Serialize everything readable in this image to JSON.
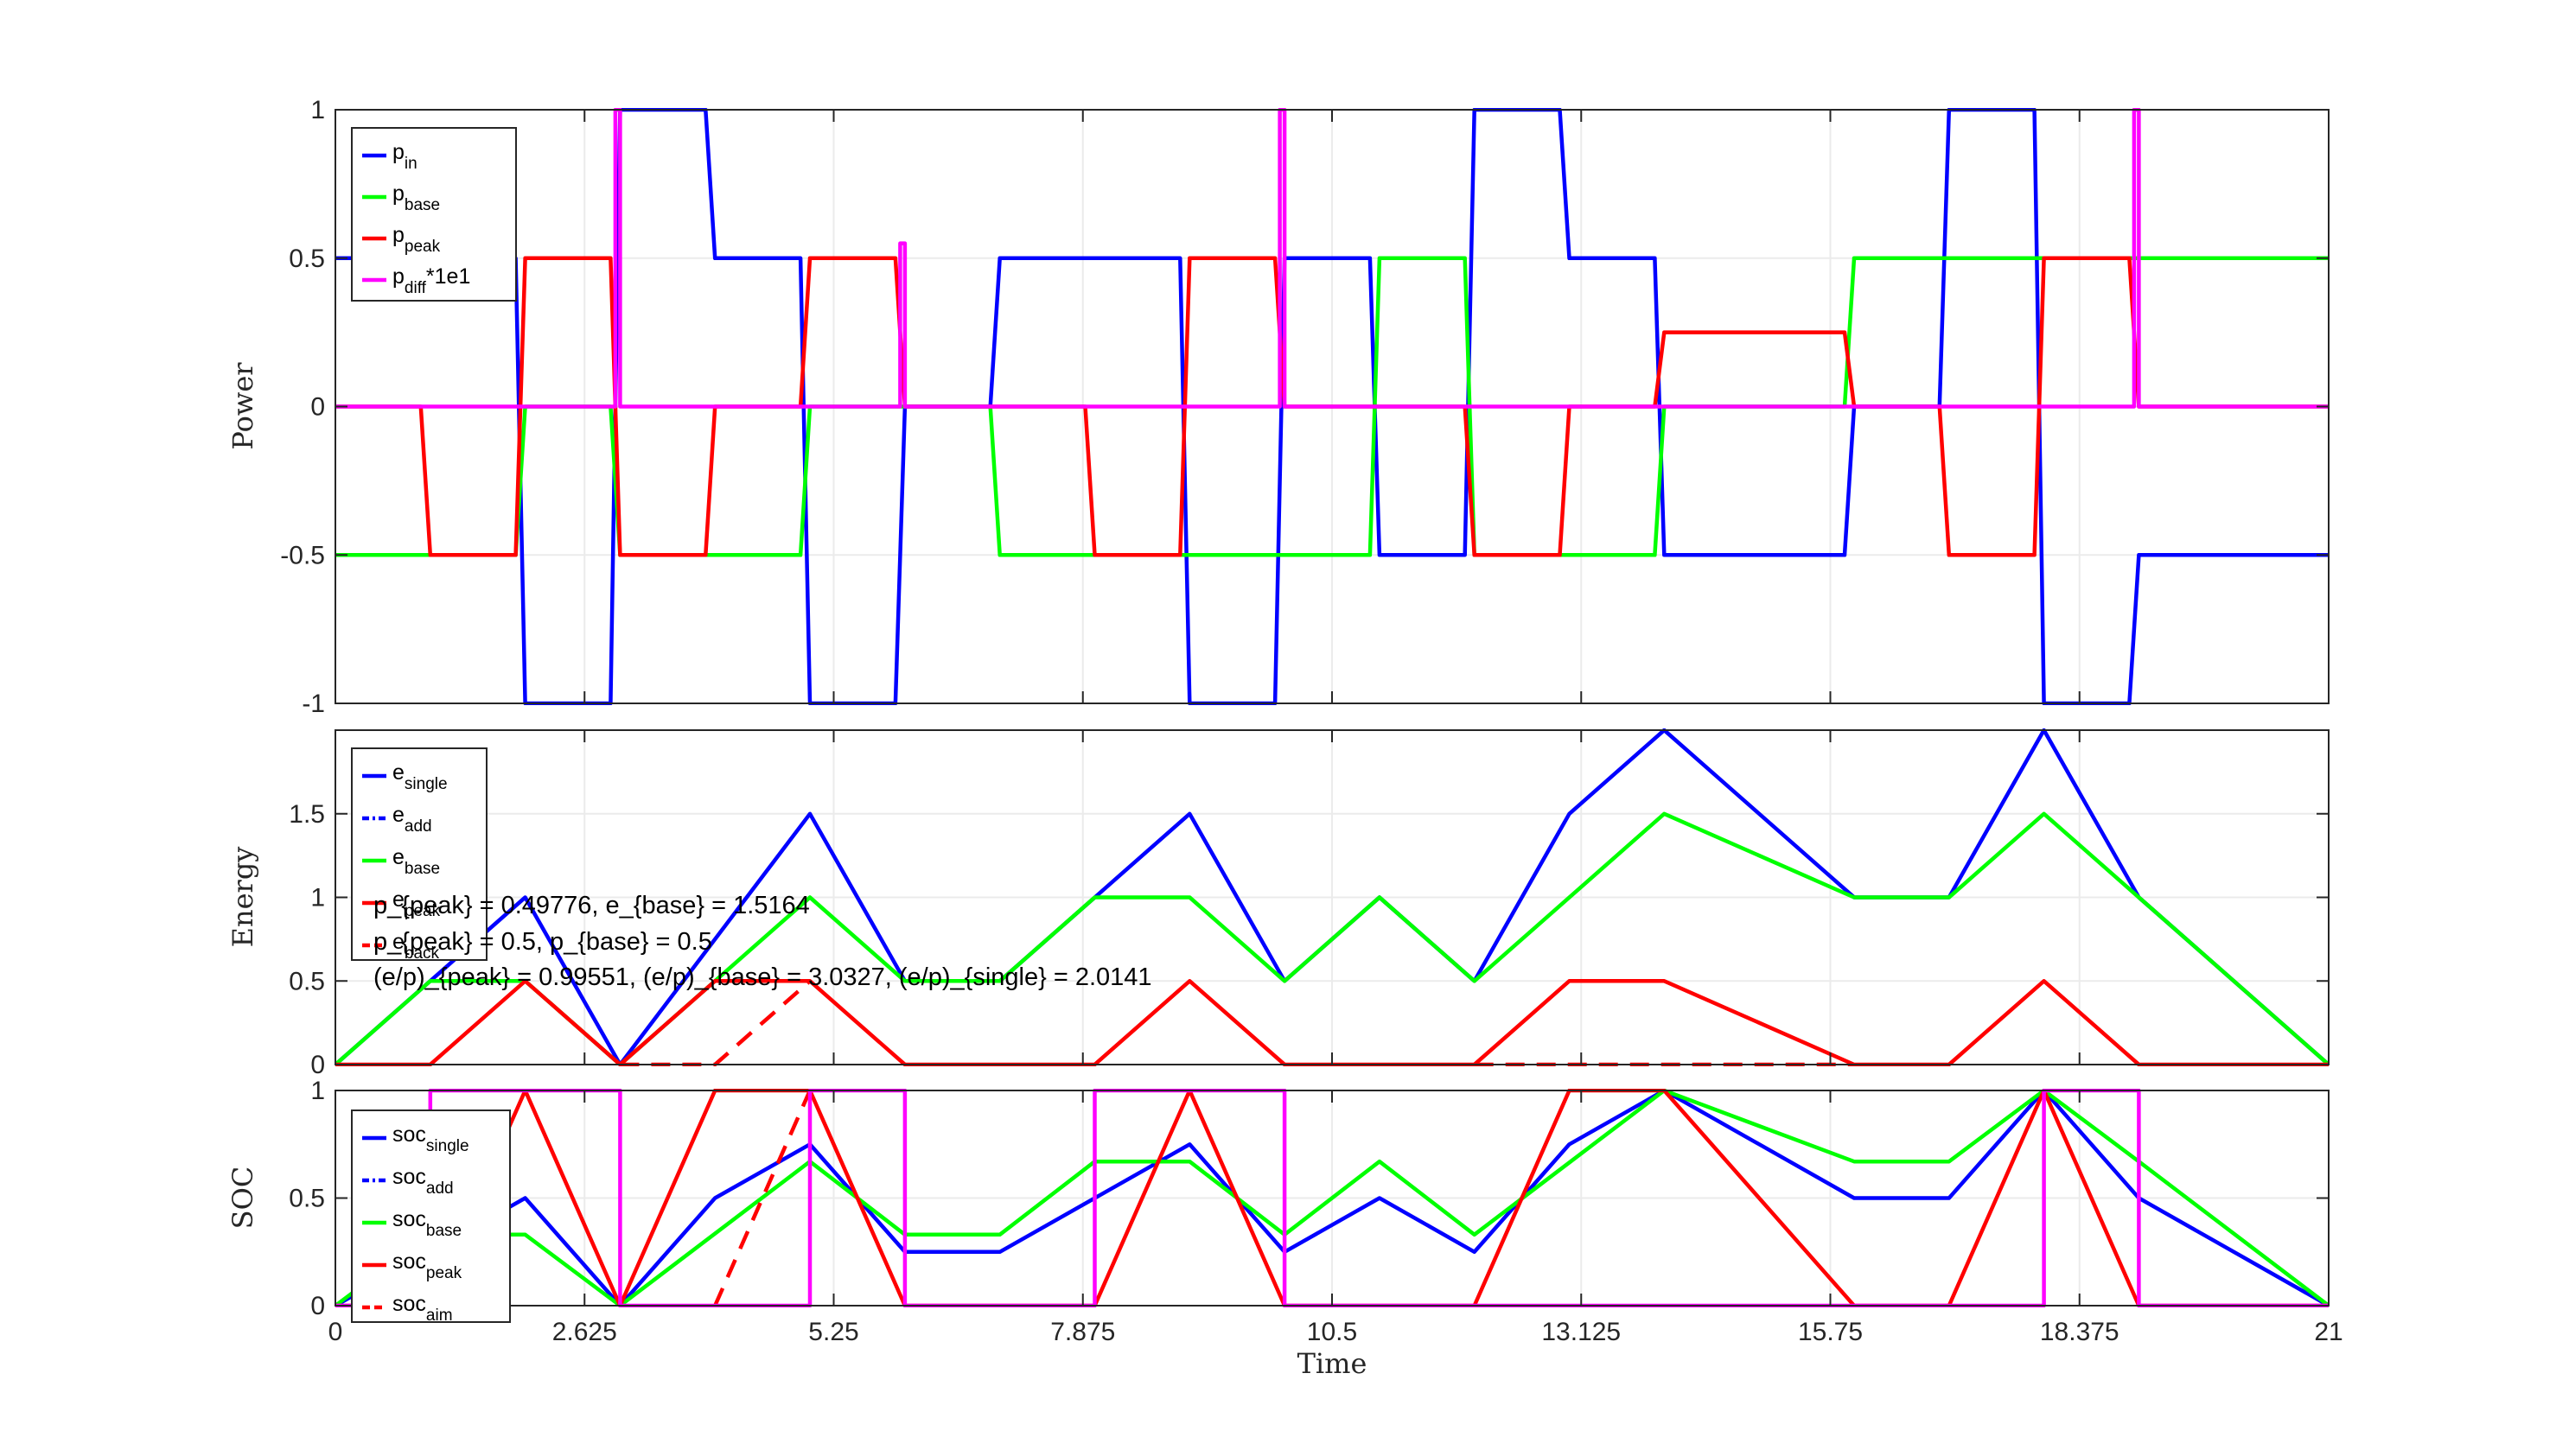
{
  "chart_data": [
    {
      "type": "line",
      "ylabel": "Power",
      "xlim": [
        0,
        21
      ],
      "ylim": [
        -1,
        1
      ],
      "yticks": [
        "-1",
        "-0.5",
        "0",
        "0.5",
        "1"
      ],
      "grid": true,
      "legend_position": "top-left",
      "series": [
        {
          "name": "p_in",
          "legend": {
            "main": "p",
            "sub": "in",
            "tail": ""
          },
          "color": "#0000ff",
          "x": [
            0,
            1.9,
            2.0,
            2.9,
            3.0,
            3.9,
            4.0,
            4.9,
            5.0,
            5.9,
            6.0,
            6.9,
            7.0,
            8.9,
            9.0,
            9.9,
            10.0,
            10.9,
            11.0,
            11.9,
            12.0,
            12.9,
            13.0,
            13.9,
            14.0,
            15.9,
            16.0,
            16.9,
            17.0,
            17.9,
            18.0,
            18.9,
            19.0,
            21
          ],
          "y": [
            0.5,
            0.5,
            -1,
            -1,
            1,
            1,
            0.5,
            0.5,
            -1,
            -1,
            0,
            0,
            0.5,
            0.5,
            -1,
            -1,
            0.5,
            0.5,
            -0.5,
            -0.5,
            1,
            1,
            0.5,
            0.5,
            -0.5,
            -0.5,
            0,
            0,
            1,
            1,
            -1,
            -1,
            -0.5,
            -0.5
          ]
        },
        {
          "name": "p_base",
          "legend": {
            "main": "p",
            "sub": "base",
            "tail": ""
          },
          "color": "#00ff00",
          "x": [
            0,
            1.9,
            2.0,
            2.9,
            3.0,
            4.9,
            5.0,
            5.9,
            6.0,
            6.9,
            7.0,
            9.9,
            10.0,
            10.9,
            11.0,
            11.9,
            12.0,
            13.9,
            14.0,
            15.9,
            16.0,
            19.9,
            20.0,
            21
          ],
          "y": [
            -0.5,
            -0.5,
            0,
            0,
            -0.5,
            -0.5,
            0,
            0,
            0,
            0,
            -0.5,
            -0.5,
            -0.5,
            -0.5,
            0.5,
            0.5,
            -0.5,
            -0.5,
            0,
            0,
            0.5,
            0.5,
            0.5,
            0.5
          ]
        },
        {
          "name": "p_peak",
          "legend": {
            "main": "p",
            "sub": "peak",
            "tail": ""
          },
          "color": "#ff0000",
          "x": [
            0,
            0.9,
            1.0,
            1.9,
            2.0,
            2.9,
            3.0,
            3.9,
            4.0,
            4.9,
            5.0,
            5.9,
            6.0,
            7.9,
            8.0,
            8.9,
            9.0,
            9.9,
            10.0,
            11.9,
            12.0,
            12.9,
            13.0,
            13.9,
            14.0,
            15.9,
            16.0,
            16.9,
            17.0,
            17.9,
            18.0,
            18.9,
            19.0,
            21
          ],
          "y": [
            0,
            0,
            -0.5,
            -0.5,
            0.5,
            0.5,
            -0.5,
            -0.5,
            0,
            0,
            0.5,
            0.5,
            0,
            0,
            -0.5,
            -0.5,
            0.5,
            0.5,
            0,
            0,
            -0.5,
            -0.5,
            0,
            0,
            0.25,
            0.25,
            0,
            0,
            -0.5,
            -0.5,
            0.5,
            0.5,
            0,
            0
          ]
        },
        {
          "name": "p_diff*1e1",
          "legend": {
            "main": "p",
            "sub": "diff",
            "tail": "*1e1"
          },
          "color": "#ff00ff",
          "x": [
            0,
            2.95,
            2.95,
            3.0,
            3.0,
            5.95,
            5.95,
            6.0,
            6.0,
            9.95,
            9.95,
            10.0,
            10.0,
            18.95,
            18.95,
            19.0,
            19.0,
            21
          ],
          "y": [
            0,
            0,
            1,
            1,
            0,
            0,
            0.55,
            0.55,
            0,
            0,
            1,
            1,
            0,
            0,
            1,
            1,
            0,
            0
          ]
        }
      ]
    },
    {
      "type": "line",
      "ylabel": "Energy",
      "xlim": [
        0,
        21
      ],
      "ylim": [
        0,
        2
      ],
      "yticks": [
        "0",
        "0.5",
        "1",
        "1.5"
      ],
      "grid": true,
      "legend_position": "top-left",
      "annotations": [
        "p_{peak} = 0.49776,  e_{base} = 1.5164",
        "p_{peak} = 0.5,  p_{base} = 0.5",
        "(e/p)_{peak} = 0.99551,  (e/p)_{base} = 3.0327,  (e/p)_{single} = 2.0141"
      ],
      "series": [
        {
          "name": "e_single",
          "legend": {
            "main": "e",
            "sub": "single",
            "tail": ""
          },
          "color": "#0000ff",
          "dash": "solid",
          "x": [
            0,
            2,
            3,
            5,
            6,
            7,
            9,
            10,
            11,
            12,
            13,
            14,
            16,
            17,
            18,
            19,
            21
          ],
          "y": [
            0,
            1,
            0,
            1.5,
            0.5,
            0.5,
            1.5,
            0.5,
            1,
            0.5,
            1.5,
            2,
            1,
            1,
            2,
            1,
            0
          ]
        },
        {
          "name": "e_add",
          "legend": {
            "main": "e",
            "sub": "add",
            "tail": ""
          },
          "color": "#0000ff",
          "dash": "dashdot",
          "x": [],
          "y": []
        },
        {
          "name": "e_base",
          "legend": {
            "main": "e",
            "sub": "base",
            "tail": ""
          },
          "color": "#00ff00",
          "dash": "solid",
          "x": [
            0,
            1,
            2,
            3,
            5,
            6,
            7,
            8,
            9,
            10,
            11,
            12,
            14,
            16,
            17,
            18,
            19,
            21
          ],
          "y": [
            0,
            0.5,
            0.5,
            0,
            1,
            0.5,
            0.5,
            1,
            1,
            0.5,
            1,
            0.5,
            1.5,
            1,
            1,
            1.5,
            1,
            0
          ]
        },
        {
          "name": "e_peak",
          "legend": {
            "main": "e",
            "sub": "peak",
            "tail": ""
          },
          "color": "#ff0000",
          "dash": "solid",
          "x": [
            0,
            1,
            2,
            3,
            4,
            5,
            6,
            8,
            9,
            10,
            12,
            13,
            14,
            16,
            17,
            18,
            19,
            21
          ],
          "y": [
            0,
            0,
            0.5,
            0,
            0.5,
            0.5,
            0,
            0,
            0.5,
            0,
            0,
            0.5,
            0.5,
            0,
            0,
            0.5,
            0,
            0
          ]
        },
        {
          "name": "e_back",
          "legend": {
            "main": "e",
            "sub": "back",
            "tail": ""
          },
          "color": "#ff0000",
          "dash": "dashed",
          "x": [
            3,
            4,
            5,
            5,
            12,
            16
          ],
          "y": [
            0,
            0,
            0.5,
            null,
            0,
            0
          ]
        }
      ]
    },
    {
      "type": "line",
      "ylabel": "SOC",
      "xlabel": "Time",
      "xlim": [
        0,
        21
      ],
      "ylim": [
        0,
        1
      ],
      "yticks": [
        "0",
        "0.5",
        "1"
      ],
      "xticks": [
        0,
        2.625,
        5.25,
        7.875,
        10.5,
        13.125,
        15.75,
        18.375,
        21
      ],
      "xticklabels": [
        "0",
        "2.625",
        "5.25",
        "7.875",
        "10.5",
        "13.125",
        "15.75",
        "18.375",
        "21"
      ],
      "grid": true,
      "legend_position": "top-left",
      "series": [
        {
          "name": "soc_single",
          "legend": {
            "main": "soc",
            "sub": "single",
            "tail": ""
          },
          "color": "#0000ff",
          "dash": "solid",
          "x": [
            0,
            1,
            2,
            3,
            4,
            5,
            6,
            7,
            9,
            10,
            11,
            12,
            13,
            14,
            16,
            17,
            18,
            19,
            21
          ],
          "y": [
            0,
            0.25,
            0.5,
            0,
            0.5,
            0.75,
            0.25,
            0.25,
            0.75,
            0.25,
            0.5,
            0.25,
            0.75,
            1,
            0.5,
            0.5,
            1,
            0.5,
            0
          ]
        },
        {
          "name": "soc_add",
          "legend": {
            "main": "soc",
            "sub": "add",
            "tail": ""
          },
          "color": "#0000ff",
          "dash": "dashdot",
          "x": [],
          "y": []
        },
        {
          "name": "soc_base",
          "legend": {
            "main": "soc",
            "sub": "base",
            "tail": ""
          },
          "color": "#00ff00",
          "dash": "solid",
          "x": [
            0,
            1,
            2,
            3,
            5,
            6,
            7,
            8,
            9,
            10,
            11,
            12,
            14,
            16,
            17,
            18,
            19,
            21
          ],
          "y": [
            0,
            0.33,
            0.33,
            0,
            0.67,
            0.33,
            0.33,
            0.67,
            0.67,
            0.33,
            0.67,
            0.33,
            1,
            0.67,
            0.67,
            1,
            0.67,
            0
          ]
        },
        {
          "name": "soc_peak",
          "legend": {
            "main": "soc",
            "sub": "peak",
            "tail": ""
          },
          "color": "#ff0000",
          "dash": "solid",
          "x": [
            0,
            1,
            2,
            3,
            4,
            5,
            6,
            8,
            9,
            10,
            12,
            13,
            14,
            16,
            17,
            18,
            19,
            21
          ],
          "y": [
            0,
            0,
            1,
            0,
            1,
            1,
            0,
            0,
            1,
            0,
            0,
            1,
            1,
            0,
            0,
            1,
            0,
            0
          ]
        },
        {
          "name": "soc_aim",
          "legend": {
            "main": "soc",
            "sub": "aim",
            "tail": ""
          },
          "color": "#ff0000",
          "dash": "dashed",
          "x": [
            4,
            5
          ],
          "y": [
            0,
            1
          ]
        },
        {
          "name": "soc_diff",
          "legend": null,
          "color": "#ff00ff",
          "dash": "solid",
          "x": [
            0,
            1,
            1,
            3,
            3,
            3,
            3,
            5,
            5,
            6,
            6,
            8,
            8,
            10,
            10,
            18,
            18,
            19,
            19,
            21
          ],
          "y": [
            0,
            0,
            1,
            1,
            0,
            0,
            0,
            0,
            1,
            1,
            0,
            0,
            1,
            1,
            0,
            0,
            1,
            1,
            0,
            0
          ]
        }
      ]
    }
  ]
}
